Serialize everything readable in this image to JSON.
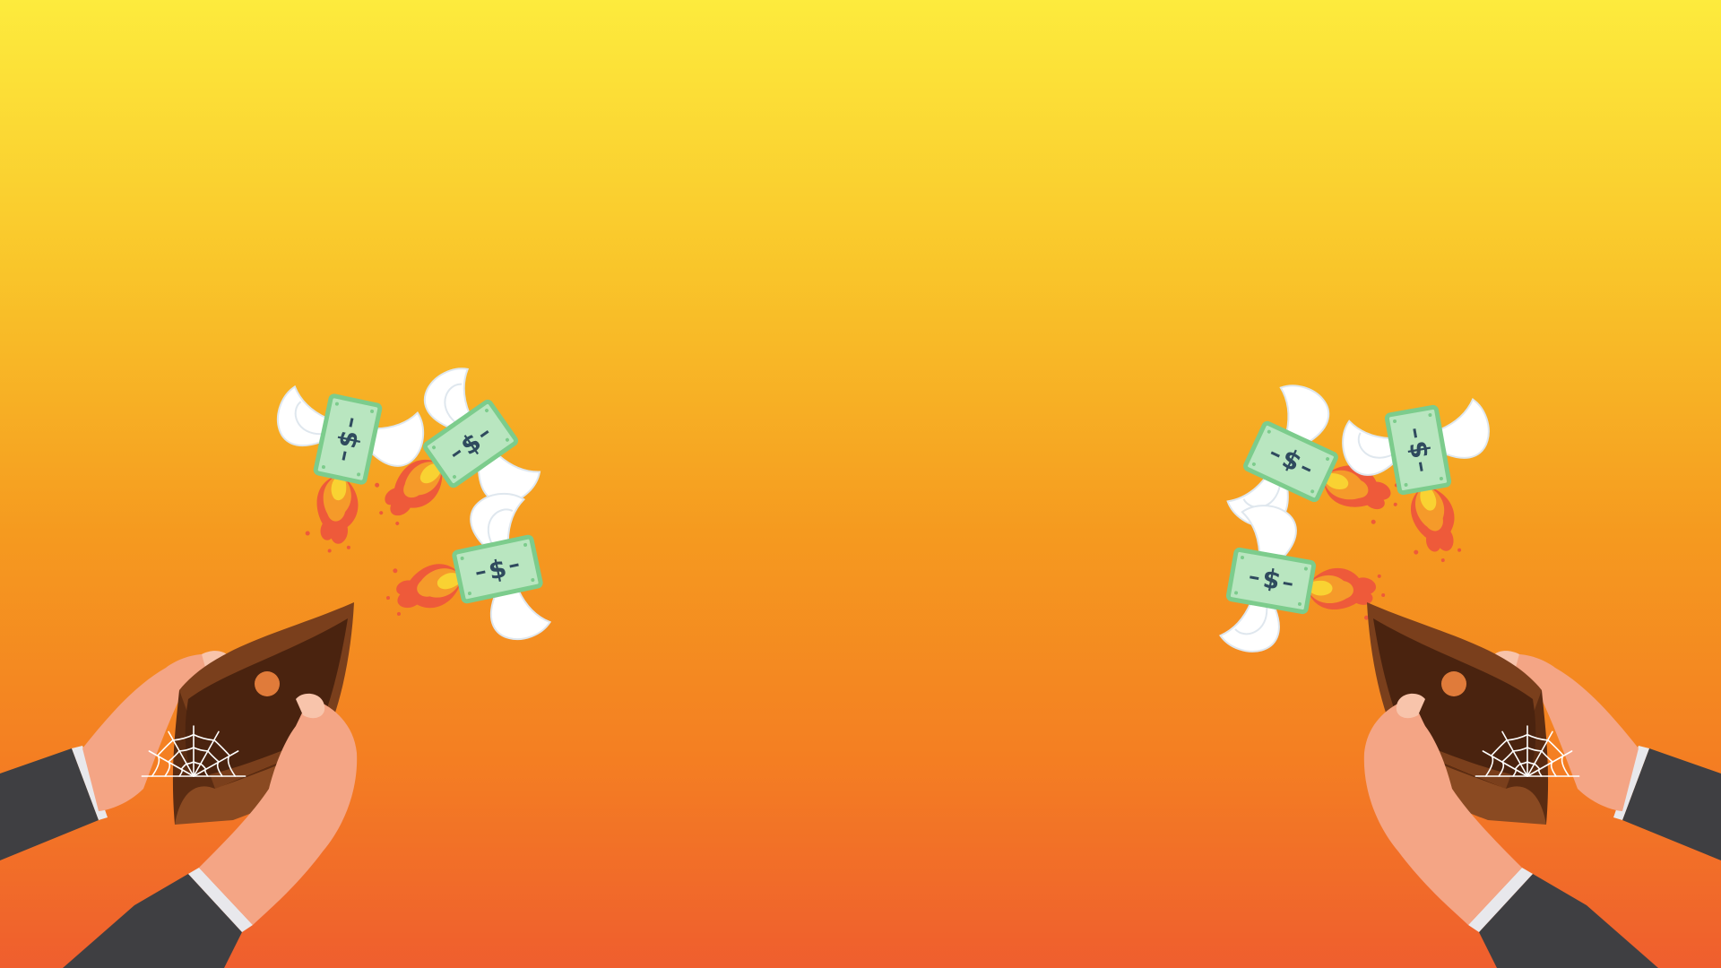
{
  "scene": {
    "background_top_color": "#fdeb3d",
    "background_bottom_color": "#ef5e2e"
  },
  "flying_money": {
    "bill_symbol": "$",
    "bill_color": "#b9e6c0",
    "bill_border_color": "#7ccc8c",
    "wing_color": "#ffffff",
    "flame_colors": [
      "#f9d232",
      "#f59a2a",
      "#ee5a3a"
    ]
  },
  "wallets": {
    "wallet_color": "#7a3f1c",
    "wallet_inner_color": "#4a230f",
    "button_color": "#e07b3a",
    "cobweb_color": "#ffffff",
    "hand_color": "#f4a585",
    "sleeve_color": "#3f3f42",
    "cuff_color": "#e8e8ec"
  }
}
